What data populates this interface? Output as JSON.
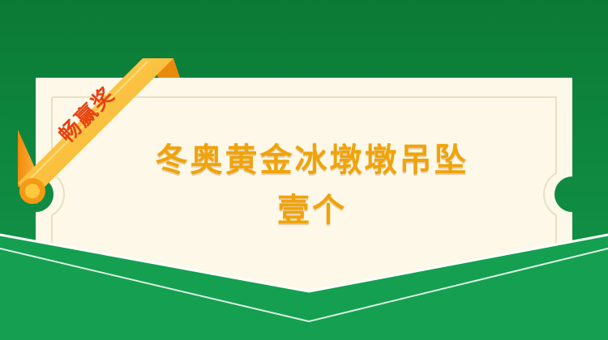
{
  "ribbon": {
    "label": "畅赢奖"
  },
  "prize": {
    "line1": "冬奥黄金冰墩墩吊坠",
    "line2": "壹个"
  },
  "colors": {
    "background": "#0e8a3e",
    "ticket": "#fdf8e8",
    "title": "#f0a30a",
    "ribbon": "#ffc83d",
    "ribbon_text": "#e8410f"
  }
}
